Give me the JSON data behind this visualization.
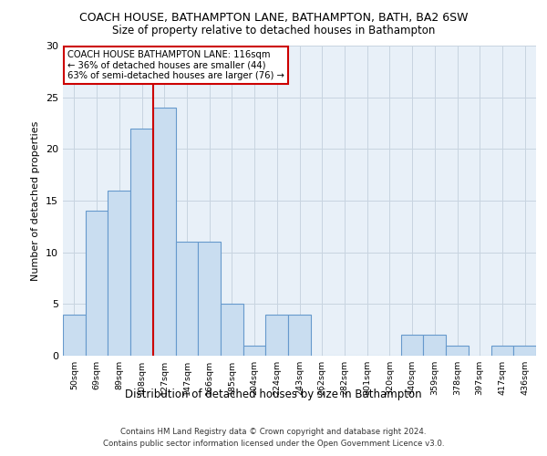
{
  "title1": "COACH HOUSE, BATHAMPTON LANE, BATHAMPTON, BATH, BA2 6SW",
  "title2": "Size of property relative to detached houses in Bathampton",
  "xlabel": "Distribution of detached houses by size in Bathampton",
  "ylabel": "Number of detached properties",
  "footnote_line1": "Contains HM Land Registry data © Crown copyright and database right 2024.",
  "footnote_line2": "Contains public sector information licensed under the Open Government Licence v3.0.",
  "bin_labels": [
    "50sqm",
    "69sqm",
    "89sqm",
    "108sqm",
    "127sqm",
    "147sqm",
    "166sqm",
    "185sqm",
    "204sqm",
    "224sqm",
    "243sqm",
    "262sqm",
    "282sqm",
    "301sqm",
    "320sqm",
    "340sqm",
    "359sqm",
    "378sqm",
    "397sqm",
    "417sqm",
    "436sqm"
  ],
  "bar_heights": [
    4,
    14,
    16,
    22,
    24,
    11,
    11,
    5,
    1,
    4,
    4,
    0,
    0,
    0,
    0,
    2,
    2,
    1,
    0,
    1,
    1
  ],
  "bar_color": "#c9ddf0",
  "bar_edge_color": "#6699cc",
  "grid_color": "#c8d4e0",
  "bg_color": "#e8f0f8",
  "property_label": "COACH HOUSE BATHAMPTON LANE: 116sqm",
  "annotation_line1": "← 36% of detached houses are smaller (44)",
  "annotation_line2": "63% of semi-detached houses are larger (76) →",
  "vline_color": "#cc0000",
  "box_edge_color": "#cc0000",
  "ylim": [
    0,
    30
  ],
  "yticks": [
    0,
    5,
    10,
    15,
    20,
    25,
    30
  ],
  "vline_x": 3.5
}
